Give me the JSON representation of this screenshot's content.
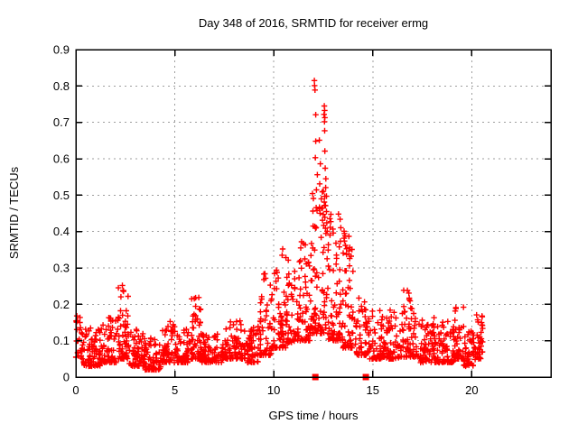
{
  "chart_data": {
    "type": "scatter",
    "title": "Day 348 of 2016, SRMTID for receiver ermg",
    "xlabel": "GPS time / hours",
    "ylabel": "SRMTID / TECUs",
    "xlim": [
      0,
      24
    ],
    "ylim": [
      0,
      0.9
    ],
    "xticks": {
      "values": [
        0,
        5,
        10,
        15,
        20
      ],
      "labels": [
        "0",
        "5",
        "10",
        "15",
        "20"
      ]
    },
    "yticks": {
      "values": [
        0,
        0.1,
        0.2,
        0.3,
        0.4,
        0.5,
        0.6,
        0.7,
        0.8,
        0.9
      ],
      "labels": [
        "0",
        "0.1",
        "0.2",
        "0.3",
        "0.4",
        "0.5",
        "0.6",
        "0.7",
        "0.8",
        "0.9"
      ]
    },
    "grid": {
      "show": true,
      "style": "dotted",
      "color": "#9e9e9e"
    },
    "colors": {
      "marker": "#ff0000",
      "border": "#000000",
      "background": "#ffffff"
    },
    "series": [
      {
        "name": "srmtid-values",
        "marker": "plus",
        "color": "#ff0000",
        "peak_points": [
          [
            12.05,
            0.815
          ],
          [
            12.06,
            0.801
          ],
          [
            12.08,
            0.789
          ],
          [
            12.55,
            0.745
          ],
          [
            12.57,
            0.733
          ],
          [
            12.54,
            0.722
          ],
          [
            12.58,
            0.713
          ],
          [
            12.56,
            0.702
          ],
          [
            12.12,
            0.721
          ],
          [
            12.57,
            0.677
          ],
          [
            12.3,
            0.651
          ],
          [
            12.12,
            0.648
          ],
          [
            12.58,
            0.621
          ],
          [
            12.1,
            0.603
          ],
          [
            12.35,
            0.586
          ],
          [
            12.6,
            0.574
          ],
          [
            12.2,
            0.556
          ],
          [
            12.63,
            0.545
          ],
          [
            12.32,
            0.531
          ],
          [
            12.62,
            0.521
          ],
          [
            12.45,
            0.509
          ],
          [
            12.66,
            0.497
          ],
          [
            12.4,
            0.49
          ],
          [
            12.55,
            0.481
          ],
          [
            12.61,
            0.471
          ],
          [
            12.42,
            0.464
          ],
          [
            12.66,
            0.455
          ],
          [
            12.5,
            0.447
          ],
          [
            12.58,
            0.439
          ],
          [
            12.46,
            0.431
          ],
          [
            12.68,
            0.424
          ],
          [
            12.52,
            0.417
          ],
          [
            12.61,
            0.409
          ],
          [
            12.7,
            0.401
          ],
          [
            13.55,
            0.401
          ],
          [
            13.6,
            0.388
          ],
          [
            13.57,
            0.374
          ],
          [
            13.62,
            0.362
          ],
          [
            11.4,
            0.372
          ],
          [
            11.36,
            0.355
          ],
          [
            10.45,
            0.352
          ],
          [
            10.42,
            0.335
          ],
          [
            9.55,
            0.284
          ],
          [
            9.5,
            0.268
          ],
          [
            2.35,
            0.252
          ],
          [
            2.38,
            0.238
          ],
          [
            6.05,
            0.218
          ],
          [
            16.75,
            0.238
          ],
          [
            0.05,
            0.168
          ],
          [
            0.08,
            0.155
          ]
        ],
        "segment_format": [
          "x_start",
          "x_end",
          "n_points",
          "y_low",
          "y_high",
          "low_bias"
        ],
        "density_segments": [
          [
            0.0,
            0.35,
            28,
            0.05,
            0.175,
            1.6
          ],
          [
            0.35,
            1.3,
            75,
            0.03,
            0.135,
            2.0
          ],
          [
            1.3,
            2.1,
            62,
            0.04,
            0.165,
            2.0
          ],
          [
            2.1,
            2.65,
            55,
            0.05,
            0.25,
            2.2
          ],
          [
            2.65,
            3.5,
            68,
            0.03,
            0.135,
            2.0
          ],
          [
            3.5,
            4.3,
            62,
            0.02,
            0.115,
            2.0
          ],
          [
            4.3,
            5.1,
            62,
            0.04,
            0.155,
            2.2
          ],
          [
            5.1,
            5.8,
            55,
            0.04,
            0.135,
            2.0
          ],
          [
            5.8,
            6.35,
            52,
            0.05,
            0.22,
            2.2
          ],
          [
            6.35,
            7.5,
            85,
            0.04,
            0.13,
            2.0
          ],
          [
            7.5,
            8.6,
            82,
            0.05,
            0.155,
            2.2
          ],
          [
            8.6,
            9.3,
            56,
            0.04,
            0.145,
            2.0
          ],
          [
            9.3,
            9.9,
            50,
            0.06,
            0.285,
            2.4
          ],
          [
            9.9,
            10.6,
            58,
            0.08,
            0.33,
            2.6
          ],
          [
            10.6,
            11.3,
            58,
            0.095,
            0.345,
            2.4
          ],
          [
            11.3,
            11.9,
            55,
            0.1,
            0.4,
            2.2
          ],
          [
            11.9,
            12.75,
            80,
            0.12,
            0.53,
            1.9
          ],
          [
            12.75,
            13.5,
            72,
            0.1,
            0.47,
            2.1
          ],
          [
            13.5,
            14.1,
            55,
            0.08,
            0.4,
            2.4
          ],
          [
            14.1,
            14.8,
            50,
            0.06,
            0.22,
            2.2
          ],
          [
            14.8,
            15.5,
            56,
            0.05,
            0.185,
            2.2
          ],
          [
            15.5,
            16.3,
            62,
            0.05,
            0.185,
            2.2
          ],
          [
            16.3,
            17.3,
            72,
            0.055,
            0.245,
            2.2
          ],
          [
            17.3,
            18.3,
            78,
            0.04,
            0.165,
            2.2
          ],
          [
            18.3,
            19.1,
            62,
            0.04,
            0.155,
            2.2
          ],
          [
            19.1,
            19.6,
            42,
            0.05,
            0.205,
            2.2
          ],
          [
            19.6,
            20.2,
            46,
            0.03,
            0.135,
            2.0
          ],
          [
            20.2,
            20.55,
            34,
            0.05,
            0.175,
            1.8
          ]
        ]
      },
      {
        "name": "flagged-times",
        "marker": "filled-square",
        "color": "#ff0000",
        "points": [
          [
            12.1,
            0
          ],
          [
            14.65,
            0
          ]
        ]
      }
    ]
  }
}
